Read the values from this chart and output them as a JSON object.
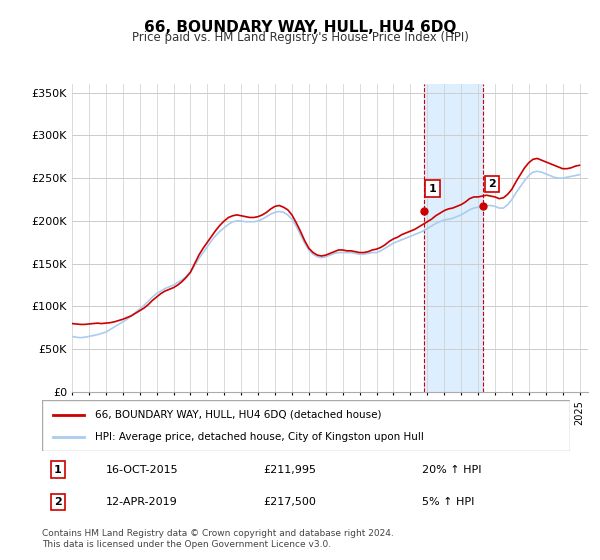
{
  "title": "66, BOUNDARY WAY, HULL, HU4 6DQ",
  "subtitle": "Price paid vs. HM Land Registry's House Price Index (HPI)",
  "ylabel_ticks": [
    "£0",
    "£50K",
    "£100K",
    "£150K",
    "£200K",
    "£250K",
    "£300K",
    "£350K"
  ],
  "ytick_values": [
    0,
    50000,
    100000,
    150000,
    200000,
    250000,
    300000,
    350000
  ],
  "ylim": [
    0,
    360000
  ],
  "xlim_start": 1995.0,
  "xlim_end": 2025.5,
  "marker1_x": 2015.79,
  "marker1_y": 211995,
  "marker2_x": 2019.28,
  "marker2_y": 217500,
  "marker1_label": "1",
  "marker2_label": "2",
  "sale1_date": "16-OCT-2015",
  "sale1_price": "£211,995",
  "sale1_hpi": "20% ↑ HPI",
  "sale2_date": "12-APR-2019",
  "sale2_price": "£217,500",
  "sale2_hpi": "5% ↑ HPI",
  "legend_line1": "66, BOUNDARY WAY, HULL, HU4 6DQ (detached house)",
  "legend_line2": "HPI: Average price, detached house, City of Kingston upon Hull",
  "footnote": "Contains HM Land Registry data © Crown copyright and database right 2024.\nThis data is licensed under the Open Government Licence v3.0.",
  "line1_color": "#cc0000",
  "line2_color": "#aaccee",
  "highlight_color": "#ddeeff",
  "marker_box_color": "#cc0000",
  "background_color": "#ffffff",
  "grid_color": "#cccccc",
  "hpi_x": [
    1995.0,
    1995.25,
    1995.5,
    1995.75,
    1996.0,
    1996.25,
    1996.5,
    1996.75,
    1997.0,
    1997.25,
    1997.5,
    1997.75,
    1998.0,
    1998.25,
    1998.5,
    1998.75,
    1999.0,
    1999.25,
    1999.5,
    1999.75,
    2000.0,
    2000.25,
    2000.5,
    2000.75,
    2001.0,
    2001.25,
    2001.5,
    2001.75,
    2002.0,
    2002.25,
    2002.5,
    2002.75,
    2003.0,
    2003.25,
    2003.5,
    2003.75,
    2004.0,
    2004.25,
    2004.5,
    2004.75,
    2005.0,
    2005.25,
    2005.5,
    2005.75,
    2006.0,
    2006.25,
    2006.5,
    2006.75,
    2007.0,
    2007.25,
    2007.5,
    2007.75,
    2008.0,
    2008.25,
    2008.5,
    2008.75,
    2009.0,
    2009.25,
    2009.5,
    2009.75,
    2010.0,
    2010.25,
    2010.5,
    2010.75,
    2011.0,
    2011.25,
    2011.5,
    2011.75,
    2012.0,
    2012.25,
    2012.5,
    2012.75,
    2013.0,
    2013.25,
    2013.5,
    2013.75,
    2014.0,
    2014.25,
    2014.5,
    2014.75,
    2015.0,
    2015.25,
    2015.5,
    2015.75,
    2016.0,
    2016.25,
    2016.5,
    2016.75,
    2017.0,
    2017.25,
    2017.5,
    2017.75,
    2018.0,
    2018.25,
    2018.5,
    2018.75,
    2019.0,
    2019.25,
    2019.5,
    2019.75,
    2020.0,
    2020.25,
    2020.5,
    2020.75,
    2021.0,
    2021.25,
    2021.5,
    2021.75,
    2022.0,
    2022.25,
    2022.5,
    2022.75,
    2023.0,
    2023.25,
    2023.5,
    2023.75,
    2024.0,
    2024.25,
    2024.5,
    2024.75,
    2025.0
  ],
  "hpi_y": [
    65000,
    64000,
    63500,
    64000,
    65000,
    66000,
    67000,
    68500,
    70000,
    73000,
    76000,
    79000,
    82000,
    85000,
    89000,
    93000,
    97000,
    101000,
    106000,
    111000,
    115000,
    118000,
    121000,
    123000,
    125000,
    128000,
    131000,
    135000,
    140000,
    148000,
    156000,
    163000,
    170000,
    177000,
    183000,
    188000,
    192000,
    196000,
    199000,
    200000,
    200000,
    199000,
    199000,
    199000,
    200000,
    202000,
    205000,
    208000,
    210000,
    211000,
    210000,
    207000,
    202000,
    194000,
    184000,
    174000,
    166000,
    161000,
    158000,
    157000,
    158000,
    160000,
    162000,
    163000,
    163000,
    163000,
    163000,
    162000,
    161000,
    161000,
    162000,
    163000,
    163000,
    165000,
    168000,
    171000,
    174000,
    176000,
    178000,
    180000,
    182000,
    184000,
    186000,
    188000,
    191000,
    194000,
    197000,
    199000,
    201000,
    202000,
    203000,
    205000,
    207000,
    210000,
    213000,
    215000,
    216000,
    217000,
    218000,
    218000,
    217000,
    215000,
    215000,
    219000,
    225000,
    233000,
    240000,
    247000,
    253000,
    257000,
    258000,
    257000,
    255000,
    253000,
    251000,
    250000,
    250000,
    251000,
    252000,
    253000,
    254000
  ],
  "property_x": [
    1995.0,
    1995.25,
    1995.5,
    1995.75,
    1996.0,
    1996.25,
    1996.5,
    1996.75,
    1997.0,
    1997.25,
    1997.5,
    1997.75,
    1998.0,
    1998.25,
    1998.5,
    1998.75,
    1999.0,
    1999.25,
    1999.5,
    1999.75,
    2000.0,
    2000.25,
    2000.5,
    2000.75,
    2001.0,
    2001.25,
    2001.5,
    2001.75,
    2002.0,
    2002.25,
    2002.5,
    2002.75,
    2003.0,
    2003.25,
    2003.5,
    2003.75,
    2004.0,
    2004.25,
    2004.5,
    2004.75,
    2005.0,
    2005.25,
    2005.5,
    2005.75,
    2006.0,
    2006.25,
    2006.5,
    2006.75,
    2007.0,
    2007.25,
    2007.5,
    2007.75,
    2008.0,
    2008.25,
    2008.5,
    2008.75,
    2009.0,
    2009.25,
    2009.5,
    2009.75,
    2010.0,
    2010.25,
    2010.5,
    2010.75,
    2011.0,
    2011.25,
    2011.5,
    2011.75,
    2012.0,
    2012.25,
    2012.5,
    2012.75,
    2013.0,
    2013.25,
    2013.5,
    2013.75,
    2014.0,
    2014.25,
    2014.5,
    2014.75,
    2015.0,
    2015.25,
    2015.5,
    2015.75,
    2016.0,
    2016.25,
    2016.5,
    2016.75,
    2017.0,
    2017.25,
    2017.5,
    2017.75,
    2018.0,
    2018.25,
    2018.5,
    2018.75,
    2019.0,
    2019.25,
    2019.5,
    2019.75,
    2020.0,
    2020.25,
    2020.5,
    2020.75,
    2021.0,
    2021.25,
    2021.5,
    2021.75,
    2022.0,
    2022.25,
    2022.5,
    2022.75,
    2023.0,
    2023.25,
    2023.5,
    2023.75,
    2024.0,
    2024.25,
    2024.5,
    2024.75,
    2025.0
  ],
  "property_y": [
    80000,
    79500,
    79000,
    79000,
    79500,
    80000,
    80500,
    80000,
    80500,
    81000,
    82000,
    83500,
    85000,
    87000,
    89000,
    92000,
    95000,
    98000,
    102000,
    107000,
    111000,
    115000,
    118000,
    120000,
    122000,
    125000,
    129000,
    134000,
    140000,
    150000,
    160000,
    168000,
    175000,
    182000,
    189000,
    195000,
    200000,
    204000,
    206000,
    207000,
    206000,
    205000,
    204000,
    204000,
    205000,
    207000,
    210000,
    214000,
    217000,
    218000,
    216000,
    213000,
    207000,
    198000,
    188000,
    177000,
    168000,
    163000,
    160000,
    159000,
    160000,
    162000,
    164000,
    166000,
    166000,
    165000,
    165000,
    164000,
    163000,
    163000,
    164000,
    166000,
    167000,
    169000,
    172000,
    176000,
    179000,
    181000,
    184000,
    186000,
    188000,
    190000,
    193000,
    196000,
    199000,
    202000,
    206000,
    209000,
    212000,
    214000,
    215000,
    217000,
    219000,
    222000,
    226000,
    228000,
    228000,
    229000,
    230000,
    229000,
    228000,
    226000,
    227000,
    231000,
    237000,
    246000,
    254000,
    262000,
    268000,
    272000,
    273000,
    271000,
    269000,
    267000,
    265000,
    263000,
    261000,
    261000,
    262000,
    264000,
    265000
  ]
}
